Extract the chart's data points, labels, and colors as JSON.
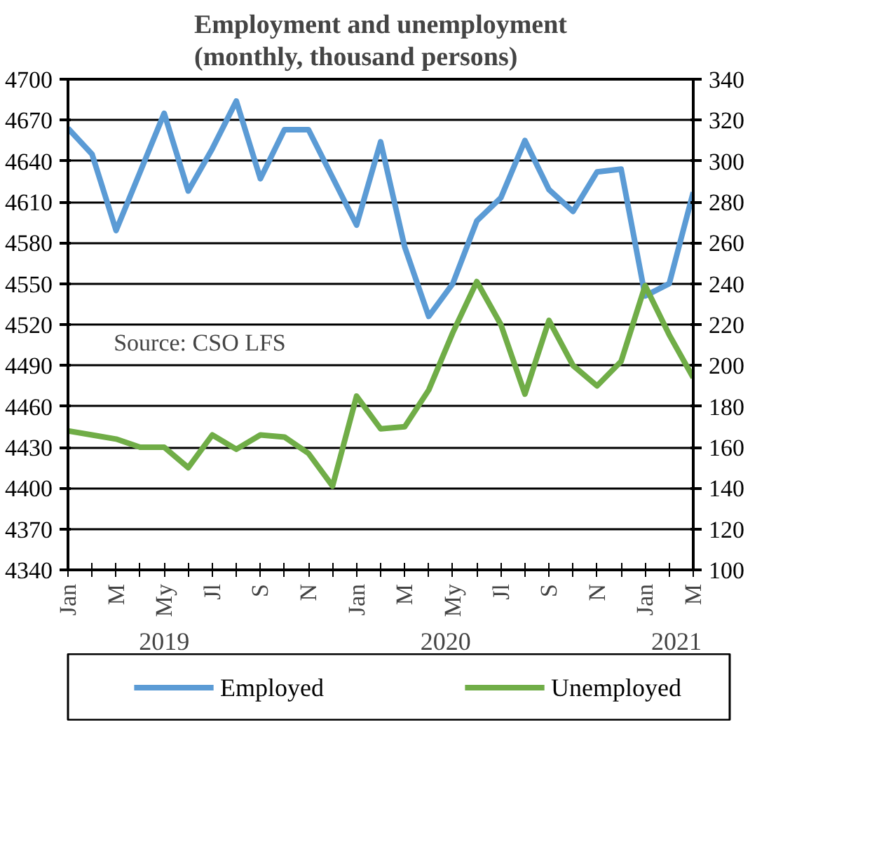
{
  "chart_data": {
    "type": "line",
    "title": "Employment and unemployment\n(monthly, thousand persons)",
    "categories": [
      "Jan",
      null,
      "M",
      null,
      "My",
      null,
      "Jl",
      null,
      "S",
      null,
      "N",
      null,
      "Jan",
      null,
      "M",
      null,
      "My",
      null,
      "Jl",
      null,
      "S",
      null,
      "N",
      null,
      "Jan",
      null,
      "M"
    ],
    "series": [
      {
        "name": "Employed",
        "color": "#5b9bd5",
        "values": [
          4664,
          4645,
          4589,
          4632,
          4675,
          4618,
          4649,
          4684,
          4627,
          4663,
          4663,
          4628,
          4593,
          4654,
          4577,
          4526,
          4550,
          4596,
          4613,
          4655,
          4619,
          4603,
          4632,
          4634,
          4541,
          4550,
          4617
        ]
      },
      {
        "name": "Unemployed",
        "color": "#70ad47",
        "axis": "y2",
        "values": [
          168,
          166,
          164,
          160,
          160,
          150,
          166,
          159,
          166,
          165,
          157,
          141,
          185,
          169,
          170,
          188,
          216,
          241,
          220,
          186,
          222,
          200,
          190,
          202,
          239,
          215,
          194
        ]
      }
    ],
    "ylim": [
      4340,
      4700
    ],
    "yticks": [
      4340,
      4370,
      4400,
      4430,
      4460,
      4490,
      4520,
      4550,
      4580,
      4610,
      4640,
      4670,
      4700
    ],
    "y2lim": [
      100,
      340
    ],
    "y2ticks": [
      100,
      120,
      140,
      160,
      180,
      200,
      220,
      240,
      260,
      280,
      300,
      320,
      340
    ],
    "annotations": [
      "Source: CSO LFS",
      "2019",
      "2020",
      "2021"
    ],
    "grid": "y",
    "legend": "bottom",
    "marker": "none",
    "line_style": "solid"
  }
}
